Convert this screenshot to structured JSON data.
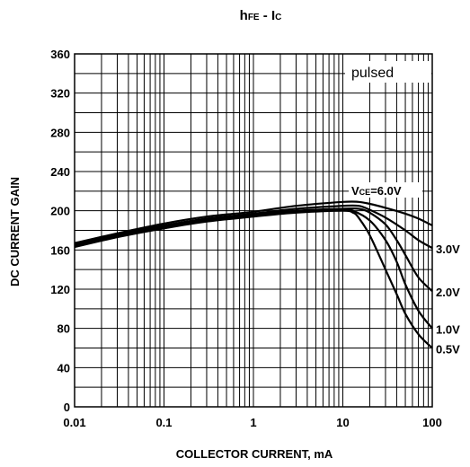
{
  "chart_data": {
    "type": "line",
    "title": {
      "main": "h",
      "main_sub": "FE",
      "sep": " - ",
      "second": "I",
      "second_sub": "C"
    },
    "xlabel": "COLLECTOR CURRENT, mA",
    "ylabel": "DC CURRENT GAIN",
    "x_scale": "log",
    "xlim": [
      0.01,
      100
    ],
    "ylim": [
      0,
      360
    ],
    "x_ticks": [
      "0.01",
      "0.1",
      "1",
      "10",
      "100"
    ],
    "y_ticks": [
      "0",
      "40",
      "80",
      "120",
      "160",
      "200",
      "240",
      "280",
      "320",
      "360"
    ],
    "grid": true,
    "annotation_pulsed": "pulsed",
    "series_label_prefix": {
      "main": "V",
      "sub": "CE",
      "rest": "=6.0V"
    },
    "series": [
      {
        "name": "6.0V",
        "label": "",
        "x": [
          0.01,
          0.03,
          0.1,
          0.3,
          1,
          3,
          10,
          15,
          20,
          30,
          50,
          70,
          100
        ],
        "y": [
          167,
          177,
          187,
          194,
          199,
          205,
          209,
          209,
          207,
          203,
          197,
          192,
          185
        ]
      },
      {
        "name": "3.0V",
        "label": "3.0V",
        "x": [
          0.01,
          0.03,
          0.1,
          0.3,
          1,
          3,
          10,
          15,
          20,
          30,
          50,
          70,
          100
        ],
        "y": [
          166,
          176,
          185,
          192,
          197,
          202,
          205,
          205,
          201,
          193,
          180,
          170,
          162
        ]
      },
      {
        "name": "2.0V",
        "label": "2.0V",
        "x": [
          0.01,
          0.03,
          0.1,
          0.3,
          1,
          3,
          10,
          15,
          20,
          30,
          40,
          50,
          70,
          100
        ],
        "y": [
          165,
          175,
          184,
          191,
          196,
          200,
          202,
          202,
          198,
          186,
          170,
          155,
          132,
          118
        ]
      },
      {
        "name": "1.0V",
        "label": "1.0V",
        "x": [
          0.01,
          0.03,
          0.1,
          0.3,
          1,
          3,
          10,
          13,
          20,
          30,
          40,
          50,
          70,
          100
        ],
        "y": [
          164,
          174,
          183,
          190,
          195,
          199,
          201,
          200,
          190,
          170,
          148,
          125,
          98,
          80
        ]
      },
      {
        "name": "0.5V",
        "label": "0.5V",
        "x": [
          0.01,
          0.03,
          0.1,
          0.3,
          1,
          3,
          10,
          13,
          15,
          20,
          30,
          40,
          50,
          70,
          100
        ],
        "y": [
          163,
          173,
          182,
          189,
          194,
          198,
          200,
          198,
          193,
          175,
          140,
          115,
          95,
          74,
          60
        ]
      }
    ]
  }
}
